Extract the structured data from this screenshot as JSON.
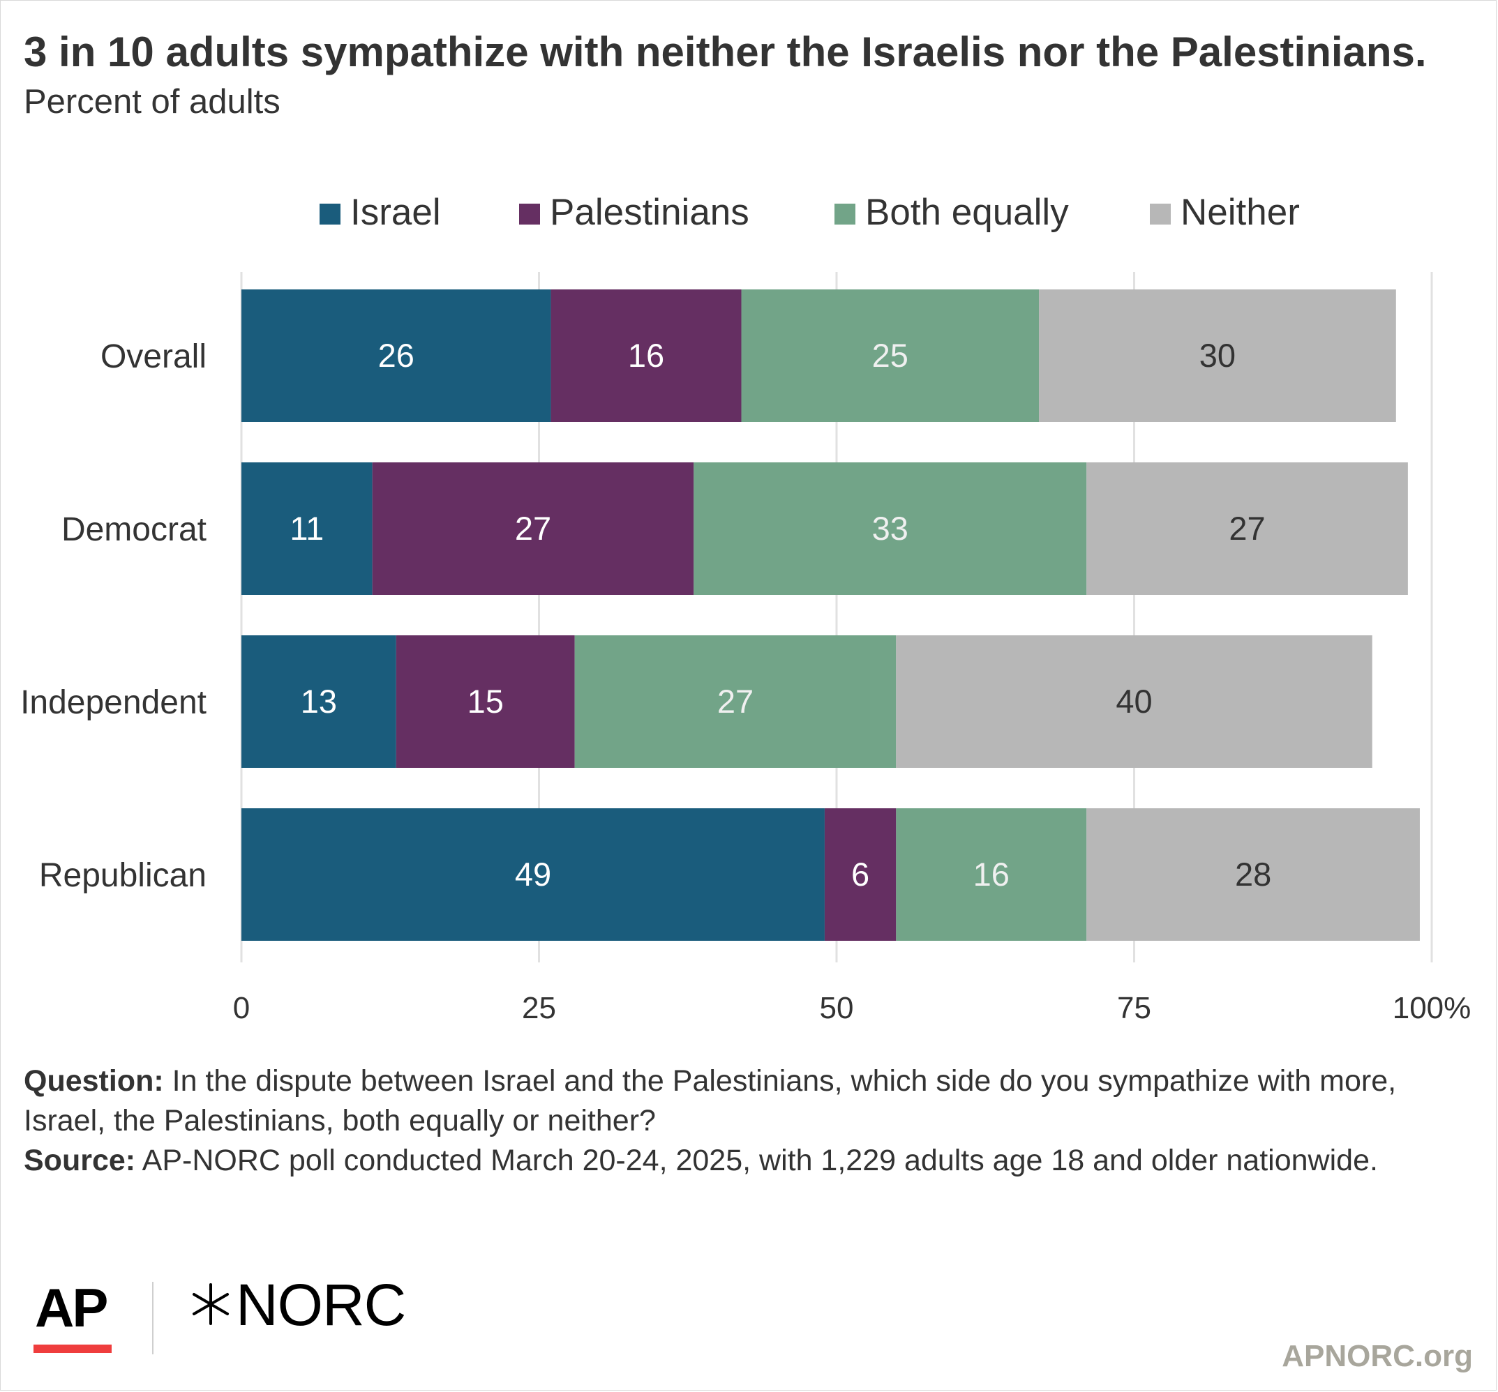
{
  "header": {
    "title": "3 in 10 adults sympathize with neither the Israelis nor the Palestinians.",
    "subtitle": "Percent of adults"
  },
  "chart_data": {
    "type": "bar",
    "orientation": "horizontal",
    "stacked": true,
    "categories": [
      "Overall",
      "Democrat",
      "Independent",
      "Republican"
    ],
    "series": [
      {
        "name": "Israel",
        "color": "#1a5c7c",
        "label_color": "#ffffff",
        "values": [
          26,
          11,
          13,
          49
        ]
      },
      {
        "name": "Palestinians",
        "color": "#652f62",
        "label_color": "#ffffff",
        "values": [
          16,
          27,
          15,
          6
        ]
      },
      {
        "name": "Both equally",
        "color": "#72a488",
        "label_color": "#f0f0f0",
        "values": [
          25,
          33,
          27,
          16
        ]
      },
      {
        "name": "Neither",
        "color": "#b7b7b7",
        "label_color": "#333333",
        "values": [
          30,
          27,
          40,
          28
        ]
      }
    ],
    "xlim": [
      0,
      100
    ],
    "xticks": [
      0,
      25,
      50,
      75,
      100
    ],
    "xtick_labels": [
      "0",
      "25",
      "50",
      "75",
      "100%"
    ],
    "grid": true,
    "legend_position": "top-center"
  },
  "notes": {
    "question_label": "Question:",
    "question_text": " In the dispute between Israel and the Palestinians, which side do you sympathize with more, Israel, the Palestinians, both equally or neither?",
    "source_label": "Source:",
    "source_text": " AP-NORC poll conducted March 20-24, 2025, with 1,229 adults age 18 and older nationwide."
  },
  "branding": {
    "ap_logo": "AP",
    "norc_logo": "NORC",
    "norc_icon": "norc-star-icon",
    "ap_accent_color": "#ef3d3d",
    "site": "APNORC.org"
  }
}
